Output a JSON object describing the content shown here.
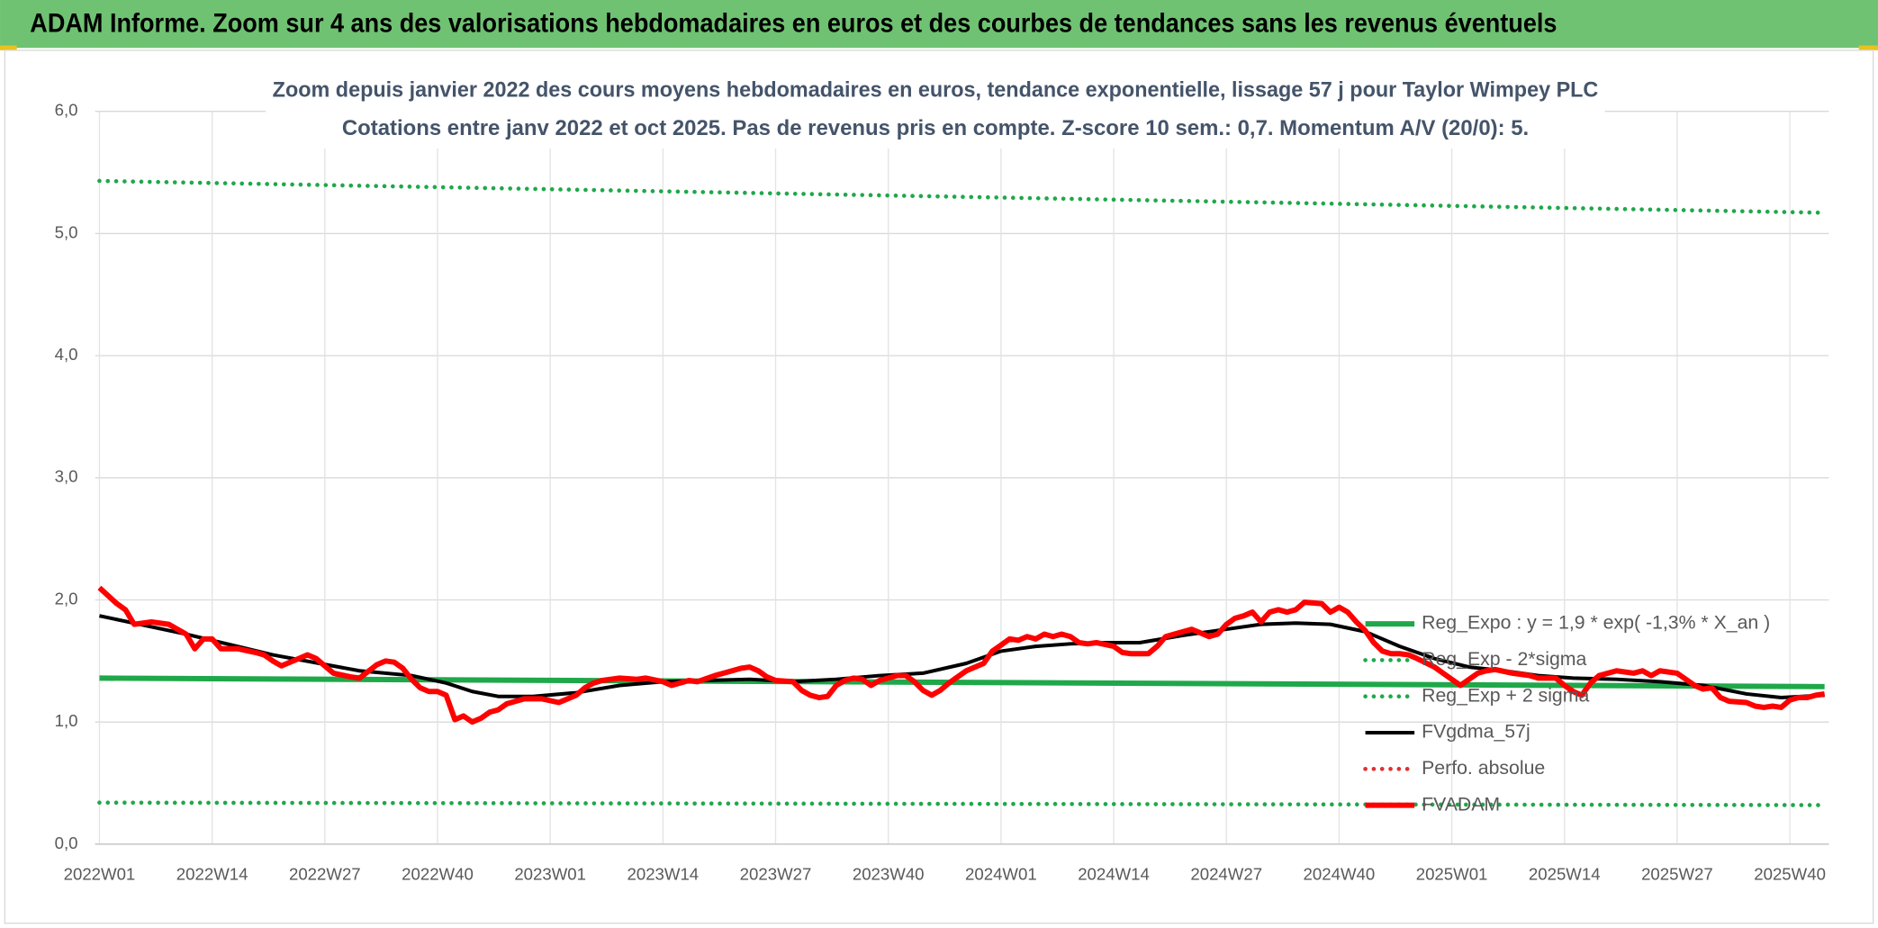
{
  "header": {
    "title": "ADAM Informe. Zoom sur 4 ans des valorisations hebdomadaires en euros et des courbes de tendances sans les revenus éventuels"
  },
  "chart_data": {
    "type": "line",
    "title": "Zoom depuis janvier 2022 des cours moyens hebdomadaires en euros, tendance exponentielle, lissage 57 j pour Taylor Wimpey PLC",
    "subtitle": "Cotations entre janv 2022 et oct 2025. Pas de revenus pris en compte. Z-score 10 sem.: 0,7. Momentum A/V (20/0): 5.",
    "xlim": [
      -0.5,
      199.5
    ],
    "xticks": [
      {
        "value": 0,
        "label": "2022W01"
      },
      {
        "value": 13,
        "label": "2022W14"
      },
      {
        "value": 26,
        "label": "2022W27"
      },
      {
        "value": 39,
        "label": "2022W40"
      },
      {
        "value": 52,
        "label": "2023W01"
      },
      {
        "value": 65,
        "label": "2023W14"
      },
      {
        "value": 78,
        "label": "2023W27"
      },
      {
        "value": 91,
        "label": "2023W40"
      },
      {
        "value": 104,
        "label": "2024W01"
      },
      {
        "value": 117,
        "label": "2024W14"
      },
      {
        "value": 130,
        "label": "2024W27"
      },
      {
        "value": 143,
        "label": "2024W40"
      },
      {
        "value": 156,
        "label": "2025W01"
      },
      {
        "value": 169,
        "label": "2025W14"
      },
      {
        "value": 182,
        "label": "2025W27"
      },
      {
        "value": 195,
        "label": "2025W40"
      }
    ],
    "ylim": [
      0,
      6
    ],
    "yticks": [
      {
        "value": 0,
        "label": "0,0"
      },
      {
        "value": 1,
        "label": "1,0"
      },
      {
        "value": 2,
        "label": "2,0"
      },
      {
        "value": 3,
        "label": "3,0"
      },
      {
        "value": 4,
        "label": "4,0"
      },
      {
        "value": 5,
        "label": "5,0"
      },
      {
        "value": 6,
        "label": "6,0"
      }
    ],
    "grid": true,
    "series": [
      {
        "name": "Reg_Expo : y = 1,9 * exp( -1,3% *  X_an )",
        "color": "#1fa84a",
        "style": "thick",
        "x": [
          0,
          199
        ],
        "values": [
          1.36,
          1.29
        ]
      },
      {
        "name": "Reg_Exp - 2*sigma",
        "color": "#1fa84a",
        "style": "dotted",
        "x": [
          0,
          199
        ],
        "values": [
          0.34,
          0.32
        ]
      },
      {
        "name": "Reg_Exp + 2 sigma",
        "color": "#1fa84a",
        "style": "dotted",
        "x": [
          0,
          199
        ],
        "values": [
          5.43,
          5.17
        ]
      },
      {
        "name": "FVgdma_57j",
        "color": "#000000",
        "style": "solid",
        "x": [
          0,
          10,
          20,
          30,
          36,
          40,
          43,
          46,
          50,
          55,
          60,
          65,
          70,
          75,
          80,
          85,
          90,
          95,
          100,
          104,
          108,
          112,
          116,
          120,
          125,
          130,
          134,
          138,
          142,
          146,
          150,
          154,
          158,
          162,
          166,
          170,
          175,
          180,
          185,
          190,
          194,
          199
        ],
        "values": [
          1.87,
          1.72,
          1.55,
          1.42,
          1.38,
          1.32,
          1.25,
          1.21,
          1.21,
          1.24,
          1.3,
          1.33,
          1.34,
          1.35,
          1.33,
          1.35,
          1.38,
          1.4,
          1.48,
          1.58,
          1.62,
          1.64,
          1.65,
          1.65,
          1.71,
          1.76,
          1.8,
          1.81,
          1.8,
          1.74,
          1.62,
          1.52,
          1.45,
          1.42,
          1.38,
          1.36,
          1.35,
          1.33,
          1.3,
          1.23,
          1.2,
          1.22
        ]
      },
      {
        "name": "Perfo. absolue",
        "color": "#e03030",
        "style": "dotted",
        "x": [],
        "values": []
      },
      {
        "name": "FVADAM",
        "color": "#ff0000",
        "style": "thick",
        "x": [
          0,
          2,
          3,
          4,
          6,
          8,
          9,
          10,
          11,
          12,
          13,
          14,
          16,
          18,
          19,
          20,
          21,
          23,
          24,
          25,
          27,
          29,
          30,
          32,
          33,
          34,
          35,
          36,
          37,
          38,
          39,
          40,
          41,
          42,
          43,
          44,
          45,
          46,
          47,
          49,
          51,
          53,
          55,
          56,
          57,
          58,
          60,
          62,
          63,
          65,
          66,
          68,
          69,
          71,
          72,
          74,
          75,
          76,
          77,
          78,
          80,
          81,
          82,
          83,
          84,
          85,
          86,
          87,
          88,
          89,
          90,
          92,
          93,
          94,
          95,
          96,
          97,
          98,
          100,
          102,
          103,
          104,
          105,
          106,
          107,
          108,
          109,
          110,
          111,
          112,
          113,
          114,
          115,
          117,
          118,
          119,
          121,
          122,
          123,
          124,
          126,
          127,
          128,
          129,
          130,
          131,
          132,
          133,
          134,
          135,
          136,
          137,
          138,
          139,
          141,
          142,
          143,
          144,
          145,
          146,
          147,
          148,
          149,
          150,
          151,
          152,
          154,
          155,
          156,
          157,
          158,
          159,
          160,
          161,
          163,
          165,
          166,
          168,
          169,
          170,
          171,
          172,
          173,
          175,
          177,
          178,
          179,
          180,
          182,
          183,
          184,
          185,
          186,
          187,
          188,
          190,
          191,
          192,
          193,
          194,
          195,
          196,
          197,
          198,
          199
        ],
        "values": [
          2.1,
          1.97,
          1.92,
          1.8,
          1.82,
          1.8,
          1.76,
          1.72,
          1.6,
          1.68,
          1.68,
          1.6,
          1.6,
          1.57,
          1.55,
          1.5,
          1.46,
          1.52,
          1.55,
          1.52,
          1.4,
          1.37,
          1.36,
          1.47,
          1.5,
          1.49,
          1.44,
          1.35,
          1.28,
          1.25,
          1.25,
          1.22,
          1.02,
          1.05,
          1.0,
          1.03,
          1.08,
          1.1,
          1.15,
          1.19,
          1.19,
          1.16,
          1.22,
          1.28,
          1.32,
          1.34,
          1.36,
          1.35,
          1.36,
          1.33,
          1.3,
          1.34,
          1.33,
          1.38,
          1.4,
          1.44,
          1.45,
          1.42,
          1.37,
          1.34,
          1.33,
          1.26,
          1.22,
          1.2,
          1.21,
          1.3,
          1.34,
          1.36,
          1.35,
          1.3,
          1.34,
          1.38,
          1.38,
          1.33,
          1.26,
          1.22,
          1.26,
          1.32,
          1.42,
          1.48,
          1.58,
          1.63,
          1.68,
          1.67,
          1.7,
          1.68,
          1.72,
          1.7,
          1.72,
          1.7,
          1.65,
          1.64,
          1.65,
          1.62,
          1.57,
          1.56,
          1.56,
          1.62,
          1.7,
          1.72,
          1.76,
          1.73,
          1.7,
          1.72,
          1.8,
          1.85,
          1.87,
          1.9,
          1.82,
          1.9,
          1.92,
          1.9,
          1.92,
          1.98,
          1.97,
          1.9,
          1.94,
          1.9,
          1.82,
          1.75,
          1.65,
          1.58,
          1.56,
          1.56,
          1.55,
          1.52,
          1.45,
          1.4,
          1.35,
          1.3,
          1.35,
          1.4,
          1.42,
          1.43,
          1.4,
          1.38,
          1.36,
          1.36,
          1.3,
          1.25,
          1.22,
          1.32,
          1.38,
          1.42,
          1.4,
          1.42,
          1.38,
          1.42,
          1.4,
          1.35,
          1.3,
          1.27,
          1.28,
          1.2,
          1.17,
          1.16,
          1.13,
          1.12,
          1.13,
          1.12,
          1.18,
          1.2,
          1.2,
          1.22,
          1.23
        ]
      }
    ]
  }
}
